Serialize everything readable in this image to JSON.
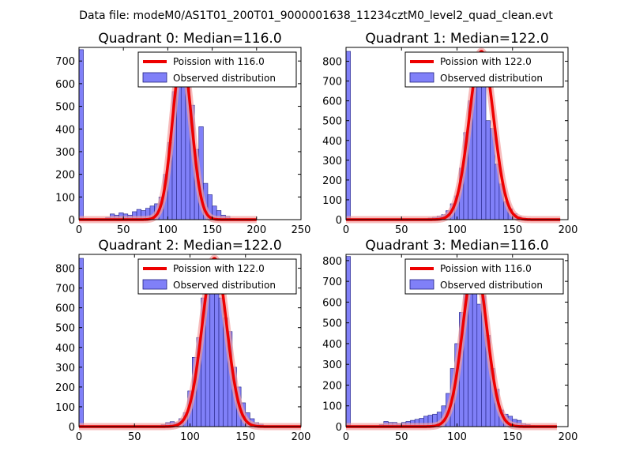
{
  "figure_title": "Data file: modeM0/AS1T01_200T01_9000001638_11234cztM0_level2_quad_clean.evt",
  "colors": {
    "bar_fill": "#8080f8",
    "bar_edge": "#202080",
    "fit_line": "#ee0000",
    "fit_glow": "#f4a0a0",
    "legend_border": "#000000"
  },
  "chart_data": [
    {
      "type": "bar",
      "title": "Quadrant 0: Median=116.0",
      "median": 116.0,
      "xlim": [
        0,
        250
      ],
      "ylim": [
        0,
        760
      ],
      "xticks": [
        0,
        50,
        100,
        150,
        200,
        250
      ],
      "yticks": [
        0,
        100,
        200,
        300,
        400,
        500,
        600,
        700
      ],
      "legend": {
        "position": "top-right",
        "line_label": "Poission with 116.0",
        "bar_label": "Observed distribution"
      },
      "bin_width": 5,
      "bin_starts": [
        0,
        30,
        35,
        40,
        45,
        50,
        55,
        60,
        65,
        70,
        75,
        80,
        85,
        90,
        95,
        100,
        105,
        110,
        115,
        120,
        125,
        130,
        135,
        140,
        145,
        150,
        155,
        160,
        165,
        170
      ],
      "bin_counts": [
        750,
        10,
        25,
        20,
        30,
        25,
        20,
        35,
        45,
        40,
        50,
        60,
        70,
        100,
        200,
        340,
        565,
        625,
        590,
        595,
        505,
        310,
        410,
        160,
        110,
        60,
        40,
        20,
        15,
        5
      ],
      "fit": {
        "mean": 116,
        "sigma": 10.8,
        "peak": 720,
        "x_range": [
          0,
          200
        ]
      }
    },
    {
      "type": "bar",
      "title": "Quadrant 1: Median=122.0",
      "median": 122.0,
      "xlim": [
        0,
        200
      ],
      "ylim": [
        0,
        870
      ],
      "xticks": [
        0,
        50,
        100,
        150,
        200
      ],
      "yticks": [
        0,
        100,
        200,
        300,
        400,
        500,
        600,
        700,
        800
      ],
      "legend": {
        "position": "top-right",
        "line_label": "Poission with 122.0",
        "bar_label": "Observed distribution"
      },
      "bin_width": 4,
      "bin_starts": [
        0,
        70,
        74,
        78,
        82,
        86,
        90,
        94,
        98,
        102,
        106,
        110,
        114,
        118,
        122,
        126,
        130,
        134,
        138,
        142,
        146,
        150,
        154,
        158
      ],
      "bin_counts": [
        850,
        5,
        8,
        12,
        18,
        25,
        45,
        80,
        120,
        260,
        440,
        600,
        700,
        840,
        680,
        500,
        460,
        280,
        180,
        90,
        55,
        30,
        15,
        8
      ],
      "fit": {
        "mean": 122,
        "sigma": 11.0,
        "peak": 850,
        "x_range": [
          0,
          193
        ]
      }
    },
    {
      "type": "bar",
      "title": "Quadrant 2: Median=122.0",
      "median": 122.0,
      "xlim": [
        0,
        200
      ],
      "ylim": [
        0,
        870
      ],
      "xticks": [
        0,
        50,
        100,
        150,
        200
      ],
      "yticks": [
        0,
        100,
        200,
        300,
        400,
        500,
        600,
        700,
        800
      ],
      "legend": {
        "position": "top-right",
        "line_label": "Poission with 122.0",
        "bar_label": "Observed distribution"
      },
      "bin_width": 4,
      "bin_starts": [
        0,
        54,
        74,
        78,
        82,
        86,
        90,
        94,
        98,
        102,
        106,
        110,
        114,
        118,
        122,
        126,
        130,
        134,
        138,
        142,
        146,
        150,
        154,
        158,
        162,
        166
      ],
      "bin_counts": [
        850,
        5,
        10,
        20,
        25,
        20,
        40,
        70,
        180,
        350,
        450,
        650,
        720,
        800,
        800,
        650,
        550,
        480,
        300,
        200,
        120,
        70,
        40,
        20,
        12,
        5
      ],
      "fit": {
        "mean": 122,
        "sigma": 11.0,
        "peak": 850,
        "x_range": [
          0,
          200
        ]
      }
    },
    {
      "type": "bar",
      "title": "Quadrant 3: Median=116.0",
      "median": 116.0,
      "xlim": [
        0,
        200
      ],
      "ylim": [
        0,
        830
      ],
      "xticks": [
        0,
        50,
        100,
        150,
        200
      ],
      "yticks": [
        0,
        100,
        200,
        300,
        400,
        500,
        600,
        700,
        800
      ],
      "legend": {
        "position": "top-right",
        "line_label": "Poission with 116.0",
        "bar_label": "Observed distribution"
      },
      "bin_width": 4,
      "bin_starts": [
        0,
        30,
        34,
        38,
        42,
        46,
        50,
        54,
        58,
        62,
        66,
        70,
        74,
        78,
        82,
        86,
        90,
        94,
        98,
        102,
        106,
        110,
        114,
        118,
        122,
        126,
        130,
        134,
        138,
        142,
        146,
        150,
        154,
        158,
        162,
        166
      ],
      "bin_counts": [
        820,
        10,
        25,
        20,
        20,
        15,
        20,
        25,
        30,
        35,
        40,
        50,
        55,
        60,
        70,
        100,
        160,
        280,
        400,
        550,
        650,
        730,
        760,
        590,
        630,
        440,
        280,
        180,
        80,
        60,
        50,
        35,
        30,
        15,
        10,
        5
      ],
      "fit": {
        "mean": 116,
        "sigma": 10.8,
        "peak": 790,
        "x_range": [
          0,
          190
        ]
      }
    }
  ]
}
